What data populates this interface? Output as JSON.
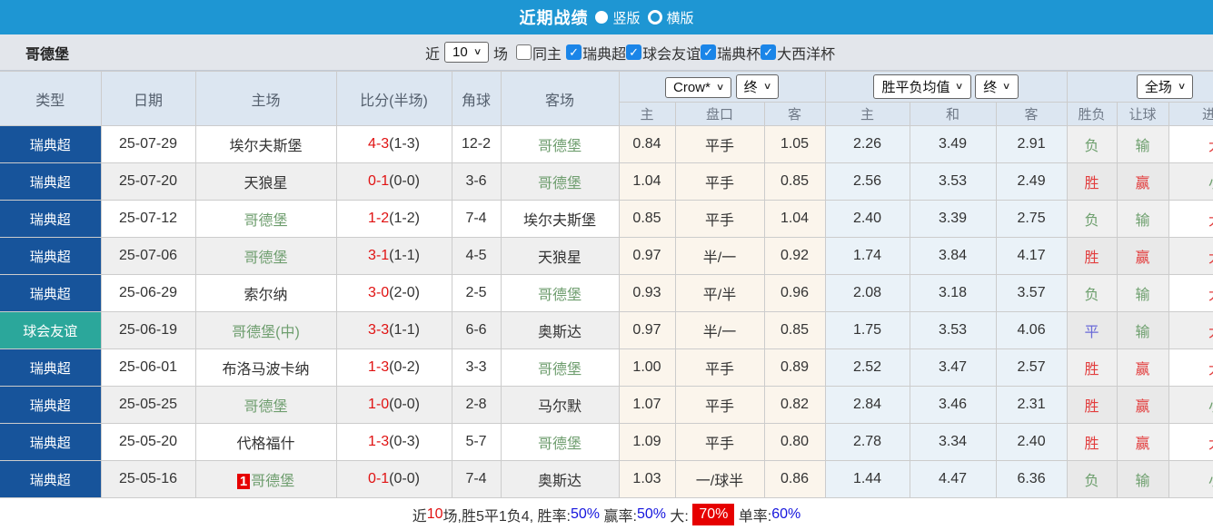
{
  "colors": {
    "league": "#17549B",
    "friendly": "#2BA79B",
    "titlebar": "#1E96D3",
    "accent_blue": "#1A85E8",
    "score_red": "#E01212",
    "team_green": "#6F9E6F",
    "win_red": "#E23D3D",
    "lose_green": "#6FA06F",
    "draw_purple": "#6A6AD8",
    "summary_blue": "#1515DD",
    "badge_red": "#E60000"
  },
  "title_bar": {
    "title": "近期战绩",
    "radios": [
      {
        "label": "竖版",
        "selected": true
      },
      {
        "label": "横版",
        "selected": false
      }
    ]
  },
  "filter_bar": {
    "team": "哥德堡",
    "near_label": "近",
    "match_count": "10",
    "games_label": "场",
    "same_home_label": "同主",
    "same_home_checked": false,
    "leagues": [
      {
        "label": "瑞典超",
        "checked": true
      },
      {
        "label": "球会友谊",
        "checked": true
      },
      {
        "label": "瑞典杯",
        "checked": true
      },
      {
        "label": "大西洋杯",
        "checked": true
      }
    ]
  },
  "table": {
    "left_headers": [
      "类型",
      "日期",
      "主场",
      "比分(半场)",
      "角球",
      "客场"
    ],
    "selects": {
      "company": "Crow*",
      "company_final": "终",
      "average": "胜平负均值",
      "average_final": "终",
      "scope": "全场"
    },
    "subheaders": [
      "主",
      "盘口",
      "客",
      "主",
      "和",
      "客",
      "胜负",
      "让球",
      "进球"
    ],
    "rows": [
      {
        "type": "瑞典超",
        "type_key": "league",
        "date": "25-07-29",
        "home": "埃尔夫斯堡",
        "home_green": false,
        "home_badge": "",
        "score": "4-3",
        "half": "(1-3)",
        "corner": "12-2",
        "away": "哥德堡",
        "away_green": true,
        "ah_home": "0.84",
        "ah_line": "平手",
        "ah_away": "1.05",
        "eu_home": "2.26",
        "eu_draw": "3.49",
        "eu_away": "2.91",
        "result": "负",
        "result_c": "green",
        "handicap": "输",
        "handicap_c": "green",
        "goals": "大",
        "goals_c": "red"
      },
      {
        "type": "瑞典超",
        "type_key": "league",
        "date": "25-07-20",
        "home": "天狼星",
        "home_green": false,
        "home_badge": "",
        "score": "0-1",
        "half": "(0-0)",
        "corner": "3-6",
        "away": "哥德堡",
        "away_green": true,
        "ah_home": "1.04",
        "ah_line": "平手",
        "ah_away": "0.85",
        "eu_home": "2.56",
        "eu_draw": "3.53",
        "eu_away": "2.49",
        "result": "胜",
        "result_c": "red",
        "handicap": "赢",
        "handicap_c": "red",
        "goals": "小",
        "goals_c": "green"
      },
      {
        "type": "瑞典超",
        "type_key": "league",
        "date": "25-07-12",
        "home": "哥德堡",
        "home_green": true,
        "home_badge": "",
        "score": "1-2",
        "half": "(1-2)",
        "corner": "7-4",
        "away": "埃尔夫斯堡",
        "away_green": false,
        "ah_home": "0.85",
        "ah_line": "平手",
        "ah_away": "1.04",
        "eu_home": "2.40",
        "eu_draw": "3.39",
        "eu_away": "2.75",
        "result": "负",
        "result_c": "green",
        "handicap": "输",
        "handicap_c": "green",
        "goals": "大",
        "goals_c": "red"
      },
      {
        "type": "瑞典超",
        "type_key": "league",
        "date": "25-07-06",
        "home": "哥德堡",
        "home_green": true,
        "home_badge": "",
        "score": "3-1",
        "half": "(1-1)",
        "corner": "4-5",
        "away": "天狼星",
        "away_green": false,
        "ah_home": "0.97",
        "ah_line": "半/一",
        "ah_away": "0.92",
        "eu_home": "1.74",
        "eu_draw": "3.84",
        "eu_away": "4.17",
        "result": "胜",
        "result_c": "red",
        "handicap": "赢",
        "handicap_c": "red",
        "goals": "大",
        "goals_c": "red"
      },
      {
        "type": "瑞典超",
        "type_key": "league",
        "date": "25-06-29",
        "home": "索尔纳",
        "home_green": false,
        "home_badge": "",
        "score": "3-0",
        "half": "(2-0)",
        "corner": "2-5",
        "away": "哥德堡",
        "away_green": true,
        "ah_home": "0.93",
        "ah_line": "平/半",
        "ah_away": "0.96",
        "eu_home": "2.08",
        "eu_draw": "3.18",
        "eu_away": "3.57",
        "result": "负",
        "result_c": "green",
        "handicap": "输",
        "handicap_c": "green",
        "goals": "大",
        "goals_c": "red"
      },
      {
        "type": "球会友谊",
        "type_key": "friendly",
        "date": "25-06-19",
        "home": "哥德堡(中)",
        "home_green": true,
        "home_badge": "",
        "score": "3-3",
        "half": "(1-1)",
        "corner": "6-6",
        "away": "奥斯达",
        "away_green": false,
        "ah_home": "0.97",
        "ah_line": "半/一",
        "ah_away": "0.85",
        "eu_home": "1.75",
        "eu_draw": "3.53",
        "eu_away": "4.06",
        "result": "平",
        "result_c": "purple",
        "handicap": "输",
        "handicap_c": "green",
        "goals": "大",
        "goals_c": "red"
      },
      {
        "type": "瑞典超",
        "type_key": "league",
        "date": "25-06-01",
        "home": "布洛马波卡纳",
        "home_green": false,
        "home_badge": "",
        "score": "1-3",
        "half": "(0-2)",
        "corner": "3-3",
        "away": "哥德堡",
        "away_green": true,
        "ah_home": "1.00",
        "ah_line": "平手",
        "ah_away": "0.89",
        "eu_home": "2.52",
        "eu_draw": "3.47",
        "eu_away": "2.57",
        "result": "胜",
        "result_c": "red",
        "handicap": "赢",
        "handicap_c": "red",
        "goals": "大",
        "goals_c": "red"
      },
      {
        "type": "瑞典超",
        "type_key": "league",
        "date": "25-05-25",
        "home": "哥德堡",
        "home_green": true,
        "home_badge": "",
        "score": "1-0",
        "half": "(0-0)",
        "corner": "2-8",
        "away": "马尔默",
        "away_green": false,
        "ah_home": "1.07",
        "ah_line": "平手",
        "ah_away": "0.82",
        "eu_home": "2.84",
        "eu_draw": "3.46",
        "eu_away": "2.31",
        "result": "胜",
        "result_c": "red",
        "handicap": "赢",
        "handicap_c": "red",
        "goals": "小",
        "goals_c": "green"
      },
      {
        "type": "瑞典超",
        "type_key": "league",
        "date": "25-05-20",
        "home": "代格福什",
        "home_green": false,
        "home_badge": "",
        "score": "1-3",
        "half": "(0-3)",
        "corner": "5-7",
        "away": "哥德堡",
        "away_green": true,
        "ah_home": "1.09",
        "ah_line": "平手",
        "ah_away": "0.80",
        "eu_home": "2.78",
        "eu_draw": "3.34",
        "eu_away": "2.40",
        "result": "胜",
        "result_c": "red",
        "handicap": "赢",
        "handicap_c": "red",
        "goals": "大",
        "goals_c": "red"
      },
      {
        "type": "瑞典超",
        "type_key": "league",
        "date": "25-05-16",
        "home": "哥德堡",
        "home_green": true,
        "home_badge": "1",
        "score": "0-1",
        "half": "(0-0)",
        "corner": "7-4",
        "away": "奥斯达",
        "away_green": false,
        "ah_home": "1.03",
        "ah_line": "一/球半",
        "ah_away": "0.86",
        "eu_home": "1.44",
        "eu_draw": "4.47",
        "eu_away": "6.36",
        "result": "负",
        "result_c": "green",
        "handicap": "输",
        "handicap_c": "green",
        "goals": "小",
        "goals_c": "green"
      }
    ]
  },
  "summary": {
    "segments": [
      {
        "text": "近",
        "style": "dark"
      },
      {
        "text": "10",
        "style": "red"
      },
      {
        "text": "场,胜5平1负4, 胜率:",
        "style": "dark"
      },
      {
        "text": "50%",
        "style": "blue"
      },
      {
        "text": " 赢率:",
        "style": "dark"
      },
      {
        "text": "50%",
        "style": "blue"
      },
      {
        "text": " 大: ",
        "style": "dark"
      },
      {
        "text": "70%",
        "style": "redbox"
      },
      {
        "text": " 单率:",
        "style": "dark"
      },
      {
        "text": "60%",
        "style": "blue"
      }
    ]
  }
}
